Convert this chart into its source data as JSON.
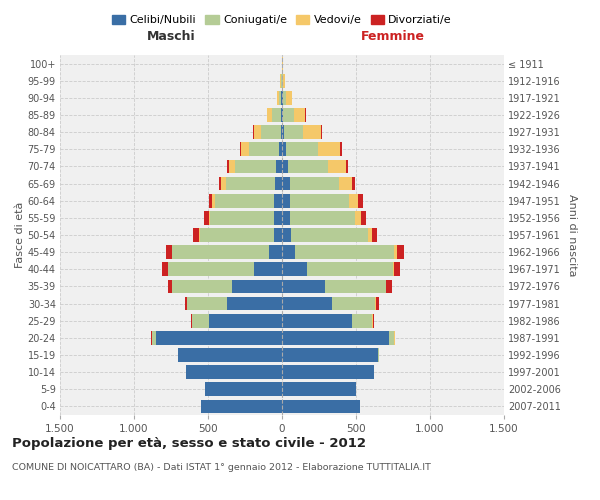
{
  "age_groups": [
    "0-4",
    "5-9",
    "10-14",
    "15-19",
    "20-24",
    "25-29",
    "30-34",
    "35-39",
    "40-44",
    "45-49",
    "50-54",
    "55-59",
    "60-64",
    "65-69",
    "70-74",
    "75-79",
    "80-84",
    "85-89",
    "90-94",
    "95-99",
    "100+"
  ],
  "birth_years": [
    "2007-2011",
    "2002-2006",
    "1997-2001",
    "1992-1996",
    "1987-1991",
    "1982-1986",
    "1977-1981",
    "1972-1976",
    "1967-1971",
    "1962-1966",
    "1957-1961",
    "1952-1956",
    "1947-1951",
    "1942-1946",
    "1937-1941",
    "1932-1936",
    "1927-1931",
    "1922-1926",
    "1917-1921",
    "1912-1916",
    "≤ 1911"
  ],
  "male": {
    "celibe": [
      550,
      520,
      650,
      700,
      850,
      490,
      370,
      340,
      190,
      90,
      55,
      55,
      55,
      50,
      40,
      20,
      10,
      8,
      4,
      2,
      0
    ],
    "coniugato": [
      0,
      0,
      1,
      5,
      30,
      120,
      270,
      400,
      580,
      650,
      500,
      430,
      400,
      330,
      280,
      200,
      130,
      60,
      15,
      5,
      0
    ],
    "vedovo": [
      0,
      0,
      0,
      0,
      0,
      0,
      1,
      2,
      3,
      5,
      8,
      10,
      15,
      30,
      40,
      60,
      50,
      30,
      15,
      5,
      0
    ],
    "divorziato": [
      0,
      0,
      0,
      0,
      2,
      5,
      15,
      30,
      35,
      40,
      35,
      30,
      25,
      15,
      10,
      5,
      3,
      2,
      0,
      0,
      0
    ]
  },
  "female": {
    "nubile": [
      530,
      500,
      620,
      650,
      720,
      470,
      340,
      290,
      170,
      90,
      60,
      55,
      55,
      55,
      40,
      25,
      15,
      8,
      5,
      2,
      0
    ],
    "coniugata": [
      0,
      0,
      1,
      5,
      40,
      140,
      290,
      410,
      580,
      670,
      520,
      440,
      400,
      330,
      270,
      220,
      130,
      70,
      20,
      5,
      2
    ],
    "vedova": [
      0,
      0,
      0,
      0,
      1,
      2,
      3,
      5,
      10,
      15,
      25,
      40,
      60,
      90,
      120,
      150,
      120,
      80,
      40,
      15,
      2
    ],
    "divorziata": [
      0,
      0,
      0,
      1,
      3,
      8,
      20,
      35,
      40,
      50,
      40,
      35,
      30,
      20,
      15,
      8,
      5,
      3,
      0,
      0,
      0
    ]
  },
  "colors": {
    "celibe": "#3A6EA5",
    "coniugato": "#B5CC96",
    "vedovo": "#F5C869",
    "divorziato": "#CC2222"
  },
  "title": "Popolazione per età, sesso e stato civile - 2012",
  "subtitle": "COMUNE DI NOICATTARO (BA) - Dati ISTAT 1° gennaio 2012 - Elaborazione TUTTITALIA.IT",
  "xlabel_male": "Maschi",
  "xlabel_female": "Femmine",
  "ylabel_left": "Fasce di età",
  "ylabel_right": "Anni di nascita",
  "legend_labels": [
    "Celibi/Nubili",
    "Coniugati/e",
    "Vedovi/e",
    "Divorziati/e"
  ],
  "xlim": 1500,
  "background": "#ffffff",
  "plot_bg": "#f0f0f0",
  "bar_height": 0.8
}
